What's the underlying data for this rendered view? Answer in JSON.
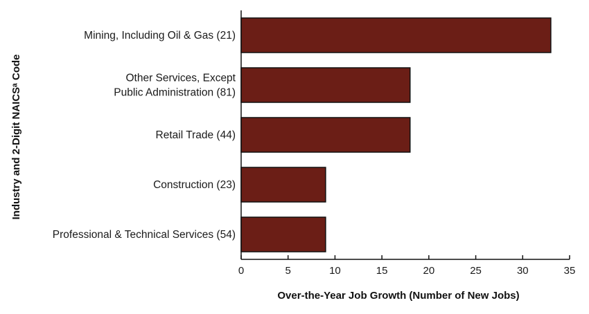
{
  "chart_data": {
    "type": "bar",
    "orientation": "horizontal",
    "categories": [
      [
        "Mining, Including Oil & Gas (21)"
      ],
      [
        "Other Services, Except",
        "Public Administration (81)"
      ],
      [
        "Retail Trade (44)"
      ],
      [
        "Construction (23)"
      ],
      [
        "Professional & Technical Services (54)"
      ]
    ],
    "values": [
      33,
      18,
      18,
      9,
      9
    ],
    "xlabel": "Over-the-Year Job Growth (Number of New Jobs)",
    "ylabel": "Industry and 2-Digit NAICSᵃ Code",
    "xlim": [
      0,
      35
    ],
    "xticks": [
      0,
      5,
      10,
      15,
      20,
      25,
      30,
      35
    ],
    "grid": false,
    "legend": "none",
    "bar_color": "#6b1e16",
    "bar_edge_color": "#111111"
  }
}
